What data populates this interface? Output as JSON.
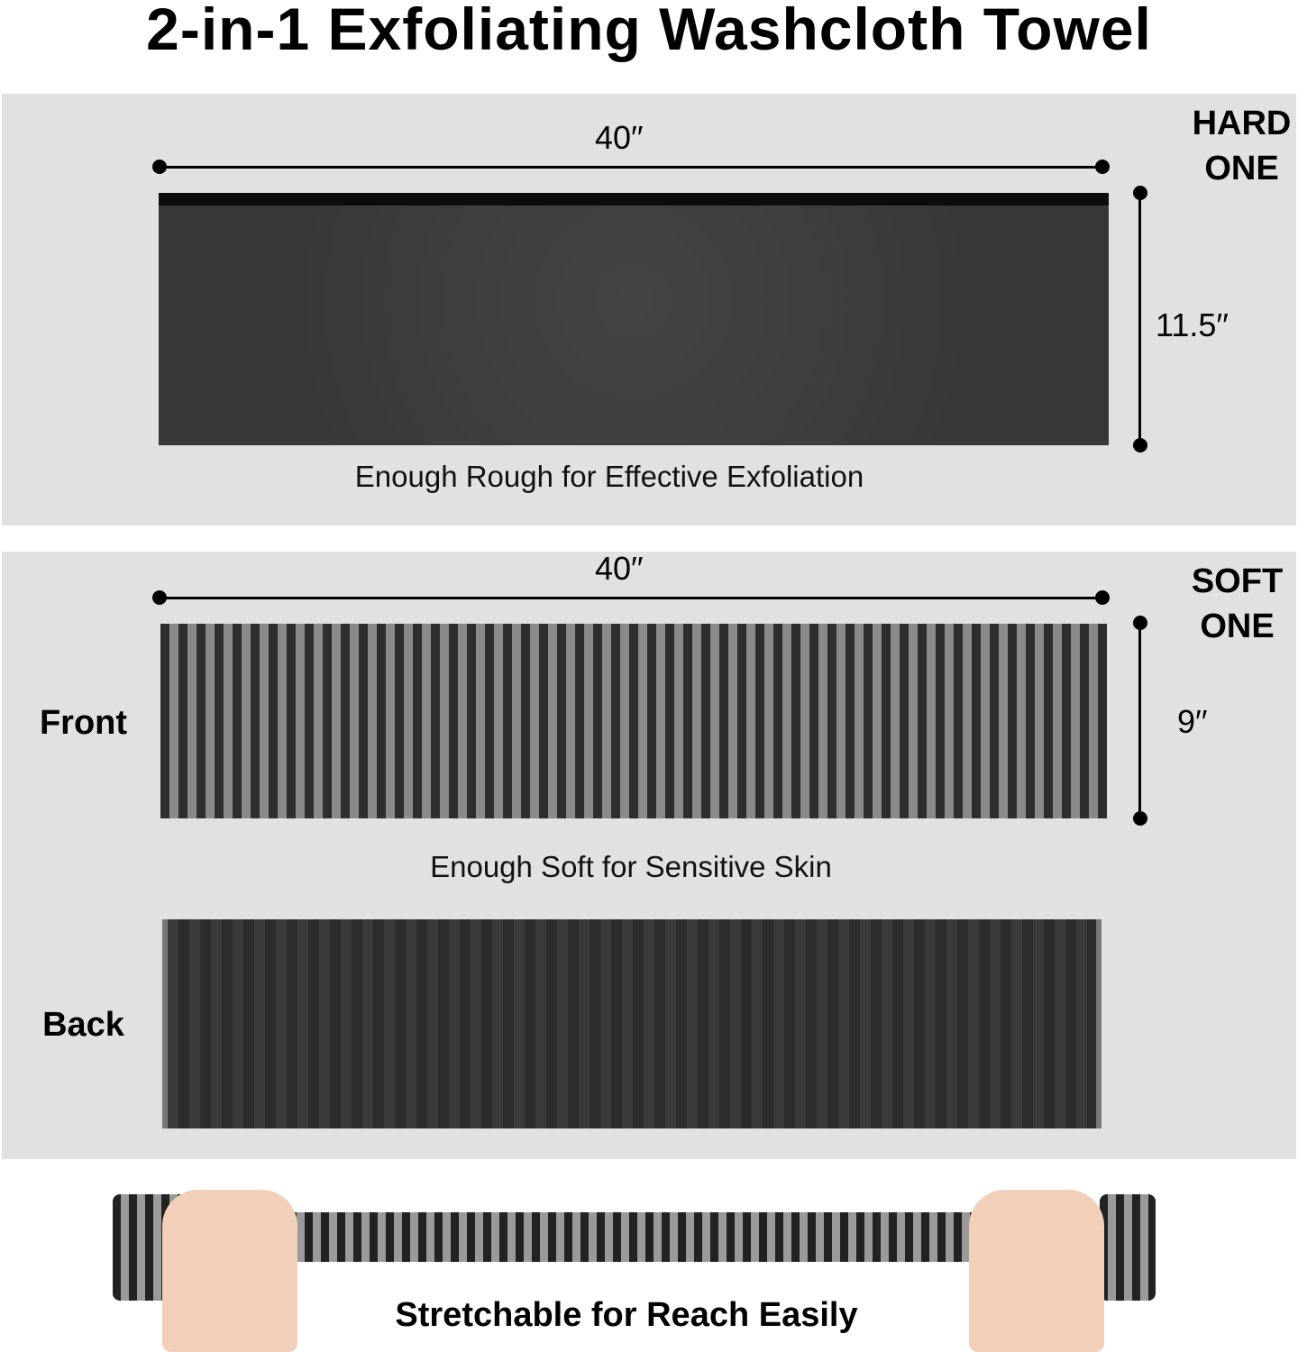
{
  "title": "2-in-1 Exfoliating Washcloth Towel",
  "hard_panel": {
    "side_label_line1": "HARD",
    "side_label_line2": "ONE",
    "width_label": "40′′",
    "height_label": "11.5′′",
    "caption": "Enough Rough for Effective Exfoliation"
  },
  "soft_panel": {
    "side_label_line1": "SOFT",
    "side_label_line2": "ONE",
    "width_label": "40′′",
    "height_label": "9′′",
    "front_label": "Front",
    "back_label": "Back",
    "caption": "Enough Soft for Sensitive Skin"
  },
  "stretch_caption": "Stretchable for Reach Easily",
  "colors": {
    "panel_bg": "#e1e1e1",
    "towel_dark": "#2e2e2e",
    "towel_light": "#8a8a8a"
  }
}
